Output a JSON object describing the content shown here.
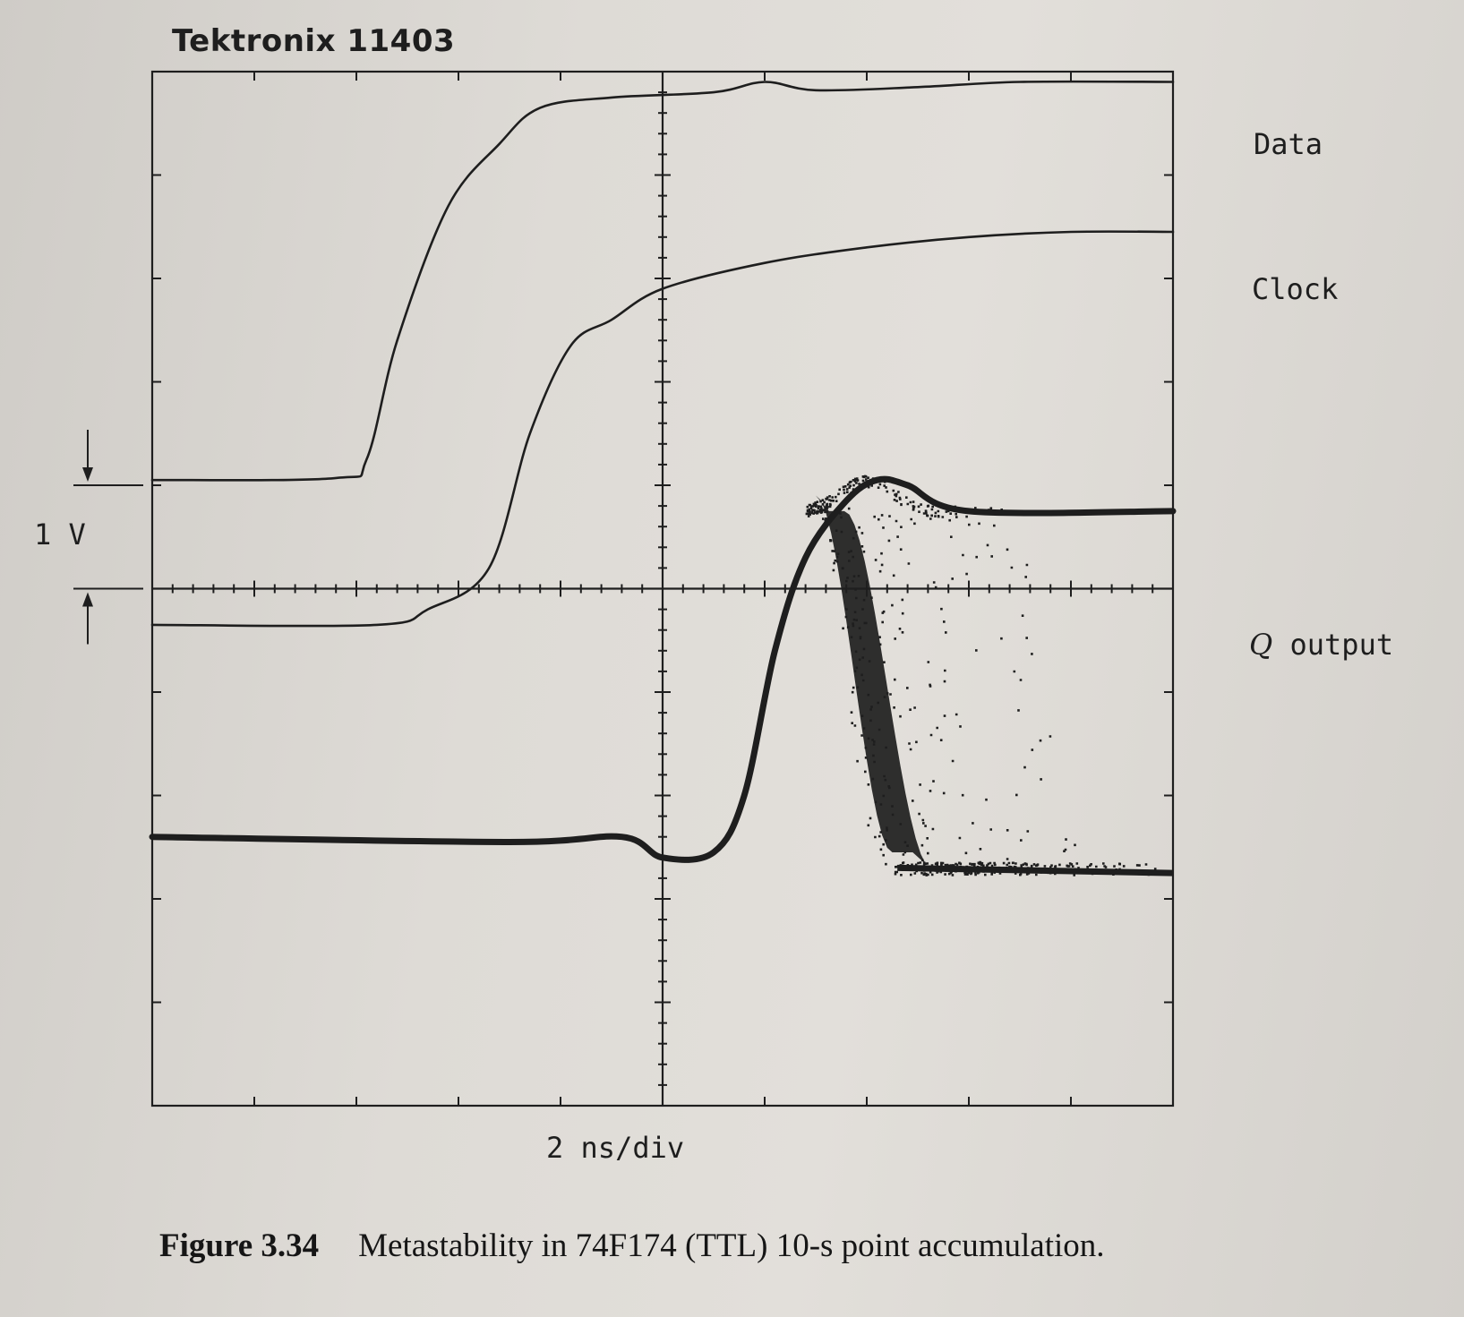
{
  "instrument": "Tektronix 11403",
  "caption": {
    "figure_label": "Figure 3.34",
    "text": "Metastability in 74F174 (TTL) 10-s point accumulation."
  },
  "chart_data": {
    "type": "line",
    "title": "",
    "xlabel": "2 ns/div",
    "ylabel": "",
    "x_divisions": 10,
    "y_divisions": 10,
    "x_range_div": [
      -5,
      5
    ],
    "y_range_div": [
      -5,
      5
    ],
    "grid": false,
    "graticule": "center cross with minor ticks",
    "voltage_scale": {
      "label": "1 V",
      "from_div": 1.0,
      "to_div": 0.0
    },
    "series": [
      {
        "name": "Data",
        "color": "#1e1e1e",
        "points": [
          [
            -5.0,
            1.05
          ],
          [
            -3.2,
            1.07
          ],
          [
            -2.9,
            1.25
          ],
          [
            -2.6,
            2.4
          ],
          [
            -2.1,
            3.7
          ],
          [
            -1.6,
            4.3
          ],
          [
            -1.2,
            4.65
          ],
          [
            -0.5,
            4.75
          ],
          [
            0.5,
            4.8
          ],
          [
            1.0,
            4.9
          ],
          [
            1.5,
            4.82
          ],
          [
            2.5,
            4.85
          ],
          [
            3.5,
            4.9
          ],
          [
            5.0,
            4.9
          ]
        ]
      },
      {
        "name": "Clock",
        "color": "#1e1e1e",
        "points": [
          [
            -5.0,
            -0.35
          ],
          [
            -2.8,
            -0.35
          ],
          [
            -2.3,
            -0.2
          ],
          [
            -1.7,
            0.2
          ],
          [
            -1.3,
            1.5
          ],
          [
            -0.9,
            2.35
          ],
          [
            -0.5,
            2.6
          ],
          [
            0.0,
            2.9
          ],
          [
            1.0,
            3.15
          ],
          [
            2.0,
            3.3
          ],
          [
            3.0,
            3.4
          ],
          [
            4.0,
            3.45
          ],
          [
            5.0,
            3.45
          ]
        ]
      },
      {
        "name": "Q output",
        "color": "#1e1e1e",
        "points": [
          [
            -5.0,
            -2.4
          ],
          [
            -1.5,
            -2.45
          ],
          [
            -0.4,
            -2.4
          ],
          [
            0.0,
            -2.6
          ],
          [
            0.5,
            -2.55
          ],
          [
            0.8,
            -2.0
          ],
          [
            1.1,
            -0.6
          ],
          [
            1.4,
            0.3
          ],
          [
            1.8,
            0.85
          ],
          [
            2.1,
            1.05
          ],
          [
            2.4,
            1.0
          ],
          [
            3.0,
            0.75
          ],
          [
            5.0,
            0.75
          ]
        ]
      }
    ],
    "metastable_envelope": {
      "name": "Q output accumulation",
      "peak_time_div": [
        1.4,
        2.3
      ],
      "high_level": 0.75,
      "low_level": -2.7,
      "fall_start_div": [
        1.5,
        3.5
      ],
      "fall_end_div": [
        2.3,
        3.8
      ]
    }
  }
}
